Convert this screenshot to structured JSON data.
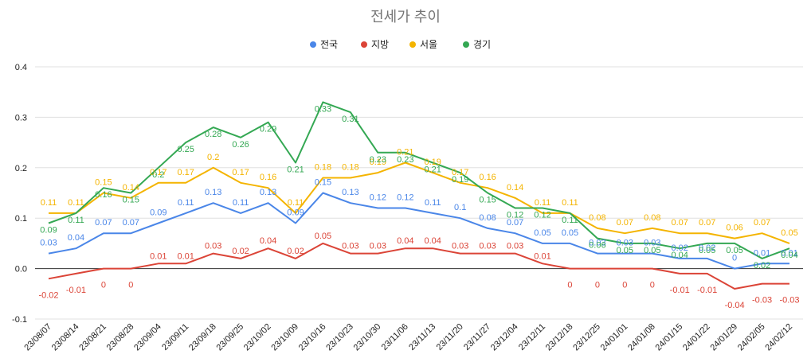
{
  "chart_data": {
    "type": "line",
    "title": "전세가 추이",
    "xlabel": "",
    "ylabel": "",
    "ylim": [
      -0.1,
      0.4
    ],
    "yticks": [
      -0.1,
      0.0,
      0.1,
      0.2,
      0.3,
      0.4
    ],
    "ytick_labels": [
      "-0.1",
      "0.0",
      "0.1",
      "0.2",
      "0.3",
      "0.4"
    ],
    "grid": true,
    "legend_position": "top-center",
    "categories": [
      "23/08/07",
      "23/08/14",
      "23/08/21",
      "23/08/28",
      "23/09/04",
      "23/09/11",
      "23/09/18",
      "23/09/25",
      "23/10/02",
      "23/10/09",
      "23/10/16",
      "23/10/23",
      "23/10/30",
      "23/11/06",
      "23/11/13",
      "23/11/20",
      "23/11/27",
      "23/12/04",
      "23/12/11",
      "23/12/18",
      "23/12/25",
      "24/01/01",
      "24/01/08",
      "24/01/15",
      "24/01/22",
      "24/01/29",
      "24/02/05",
      "24/02/12"
    ],
    "series": [
      {
        "name": "전국",
        "color": "#4a86e8",
        "values": [
          0.03,
          0.04,
          0.07,
          0.07,
          0.09,
          0.11,
          0.13,
          0.11,
          0.13,
          0.09,
          0.15,
          0.13,
          0.12,
          0.12,
          0.11,
          0.1,
          0.08,
          0.07,
          0.05,
          0.05,
          0.03,
          0.03,
          0.03,
          0.02,
          0.02,
          0,
          0.01,
          0.01
        ],
        "labels": [
          "0.03",
          "0.04",
          "0.07",
          "0.07",
          "0.09",
          "0.11",
          "0.13",
          "0.11",
          "0.13",
          "0.09",
          "0.15",
          "0.13",
          "0.12",
          "0.12",
          "0.11",
          "0.1",
          "0.08",
          "0.07",
          "0.05",
          "0.05",
          "0.03",
          "0.03",
          "0.03",
          "0.02",
          "0.02",
          "0",
          "0.01",
          "0.01"
        ]
      },
      {
        "name": "지방",
        "color": "#db4437",
        "values": [
          -0.02,
          -0.01,
          0,
          0,
          0.01,
          0.01,
          0.03,
          0.02,
          0.04,
          0.02,
          0.05,
          0.03,
          0.03,
          0.04,
          0.04,
          0.03,
          0.03,
          0.03,
          0.01,
          0,
          0,
          0,
          0,
          -0.01,
          -0.01,
          -0.04,
          -0.03,
          -0.03
        ],
        "labels": [
          "-0.02",
          "-0.01",
          "0",
          "0",
          "0.01",
          "0.01",
          "0.03",
          "0.02",
          "0.04",
          "0.02",
          "0.05",
          "0.03",
          "0.03",
          "0.04",
          "0.04",
          "0.03",
          "0.03",
          "0.03",
          "0.01",
          "0",
          "0",
          "0",
          "0",
          "-0.01",
          "-0.01",
          "-0.04",
          "-0.03",
          "-0.03"
        ]
      },
      {
        "name": "서울",
        "color": "#f4b400",
        "values": [
          0.11,
          0.11,
          0.15,
          0.14,
          0.17,
          0.17,
          0.2,
          0.17,
          0.16,
          0.11,
          0.18,
          0.18,
          0.19,
          0.21,
          0.19,
          0.17,
          0.16,
          0.14,
          0.11,
          0.11,
          0.08,
          0.07,
          0.08,
          0.07,
          0.07,
          0.06,
          0.07,
          0.05
        ],
        "labels": [
          "0.11",
          "0.11",
          "0.15",
          "0.14",
          "0.17",
          "0.17",
          "0.2",
          "0.17",
          "0.16",
          "0.11",
          "0.18",
          "0.18",
          "0.19",
          "0.21",
          "0.19",
          "0.17",
          "0.16",
          "0.14",
          "0.11",
          "0.11",
          "0.08",
          "0.07",
          "0.08",
          "0.07",
          "0.07",
          "0.06",
          "0.07",
          "0.05"
        ]
      },
      {
        "name": "경기",
        "color": "#34a853",
        "values": [
          0.09,
          0.11,
          0.16,
          0.15,
          0.2,
          0.25,
          0.28,
          0.26,
          0.29,
          0.21,
          0.33,
          0.31,
          0.23,
          0.23,
          0.21,
          0.19,
          0.15,
          0.12,
          0.12,
          0.11,
          0.06,
          0.05,
          0.05,
          0.04,
          0.05,
          0.05,
          0.02,
          0.04
        ],
        "labels": [
          "0.09",
          "0.11",
          "0.16",
          "0.15",
          "0.2",
          "0.25",
          "0.28",
          "0.26",
          "0.29",
          "0.21",
          "0.33",
          "0.31",
          "0.23",
          "0.23",
          "0.21",
          "0.19",
          "0.15",
          "0.12",
          "0.12",
          "0.11",
          "0.06",
          "0.05",
          "0.05",
          "0.04",
          "0.05",
          "0.05",
          "0.02",
          "0.04"
        ]
      }
    ]
  }
}
